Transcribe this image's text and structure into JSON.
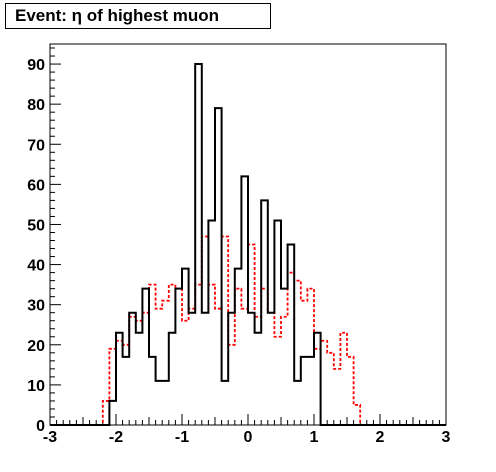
{
  "chart_data": {
    "type": "histogram",
    "title": "Event: η of highest muon",
    "xlabel": "",
    "ylabel": "",
    "xlim": [
      -3,
      3
    ],
    "ylim": [
      0,
      95
    ],
    "grid": false,
    "bin_edges": [
      -3.0,
      -2.9,
      -2.8,
      -2.7,
      -2.6,
      -2.5,
      -2.4,
      -2.3,
      -2.2,
      -2.1,
      -2.0,
      -1.9,
      -1.8,
      -1.7,
      -1.6,
      -1.5,
      -1.4,
      -1.3,
      -1.2,
      -1.1,
      -1.0,
      -0.9,
      -0.8,
      -0.7,
      -0.6,
      -0.5,
      -0.4,
      -0.3,
      -0.2,
      -0.1,
      0.0,
      0.1,
      0.2,
      0.3,
      0.4,
      0.5,
      0.6,
      0.7,
      0.8,
      0.9,
      1.0,
      1.1,
      1.2,
      1.3,
      1.4,
      1.5,
      1.6,
      1.7,
      1.8,
      1.9,
      2.0,
      2.1,
      2.2,
      2.3,
      2.4,
      2.5,
      2.6,
      2.7,
      2.8,
      2.9,
      3.0
    ],
    "series": [
      {
        "style": "solid",
        "color": "#000000",
        "values": [
          0,
          0,
          0,
          0,
          0,
          0,
          0,
          0,
          0,
          6,
          23,
          17,
          28,
          23,
          34,
          17,
          11,
          11,
          23,
          34,
          39,
          28,
          90,
          28,
          51,
          79,
          11,
          28,
          39,
          62,
          28,
          23,
          56,
          28,
          51,
          34,
          45,
          11,
          17,
          17,
          23,
          0,
          0,
          0,
          0,
          0,
          0,
          0,
          0,
          0,
          0,
          0,
          0,
          0,
          0,
          0,
          0,
          0,
          0,
          0
        ]
      },
      {
        "style": "dashed",
        "color": "#ff0000",
        "values": [
          0,
          0,
          0,
          0,
          0,
          0,
          0,
          0,
          6,
          19,
          21,
          20,
          27,
          26,
          28,
          35,
          29,
          31,
          35,
          34,
          26,
          29,
          35,
          47,
          35,
          29,
          47,
          20,
          34,
          29,
          45,
          27,
          34,
          28,
          22,
          27,
          38,
          36,
          31,
          34,
          19,
          21,
          18,
          14,
          23,
          17,
          5,
          0,
          0,
          0,
          0,
          0,
          0,
          0,
          0,
          0,
          0,
          0,
          0,
          0
        ]
      }
    ],
    "xticks": [
      "-3",
      "-2",
      "-1",
      "0",
      "1",
      "2",
      "3"
    ],
    "yticks": [
      "0",
      "10",
      "20",
      "30",
      "40",
      "50",
      "60",
      "70",
      "80",
      "90"
    ]
  }
}
